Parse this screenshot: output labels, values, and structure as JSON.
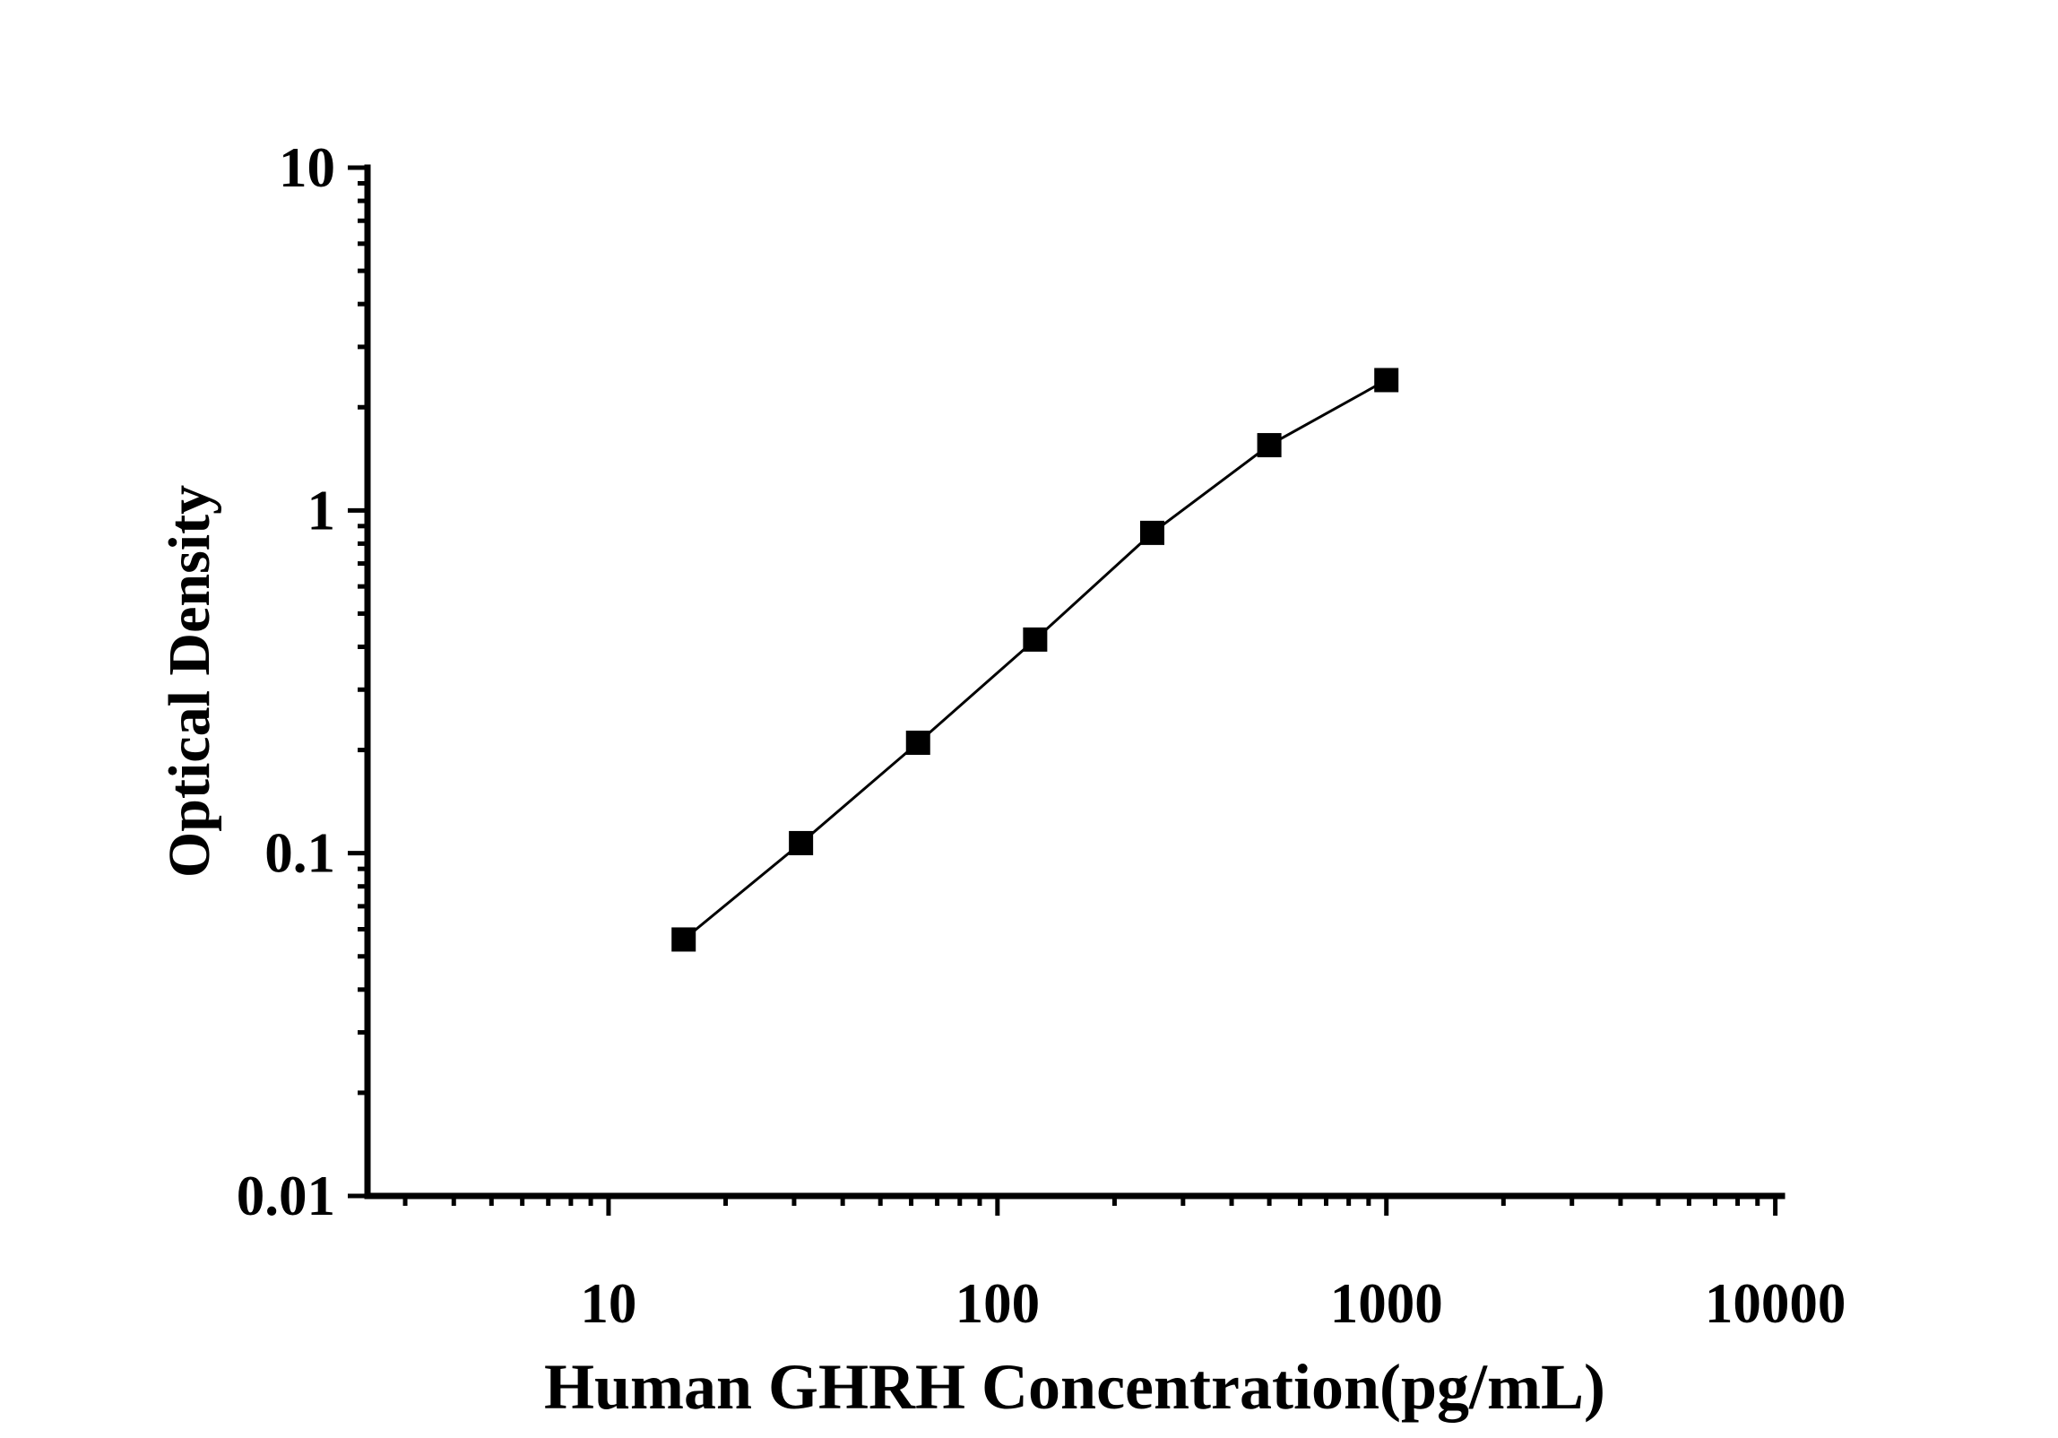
{
  "figure": {
    "background_color": "#ffffff",
    "ink_color": "#000000"
  },
  "chart_data": {
    "type": "line",
    "subtype": "scatter-line-standard-curve",
    "title": "",
    "xlabel": "Human GHRH Concentration(pg/mL)",
    "ylabel": "Optical Density",
    "x_scale": "log",
    "y_scale": "log",
    "xlim": [
      2.4,
      10400
    ],
    "ylim": [
      0.01,
      10
    ],
    "x_ticks": [
      10,
      100,
      1000,
      10000
    ],
    "x_tick_labels": [
      "10",
      "100",
      "1000",
      "10000"
    ],
    "y_ticks": [
      0.01,
      0.1,
      1,
      10
    ],
    "y_tick_labels": [
      "0.01",
      "0.1",
      "1",
      "10"
    ],
    "grid": false,
    "legend": false,
    "series": [
      {
        "name": "standard-curve",
        "marker": "filled-square",
        "line_style": "solid",
        "color": "#000000",
        "x": [
          15.6,
          31.25,
          62.5,
          125,
          250,
          500,
          1000
        ],
        "y": [
          0.056,
          0.107,
          0.21,
          0.42,
          0.86,
          1.55,
          2.4
        ]
      }
    ]
  }
}
